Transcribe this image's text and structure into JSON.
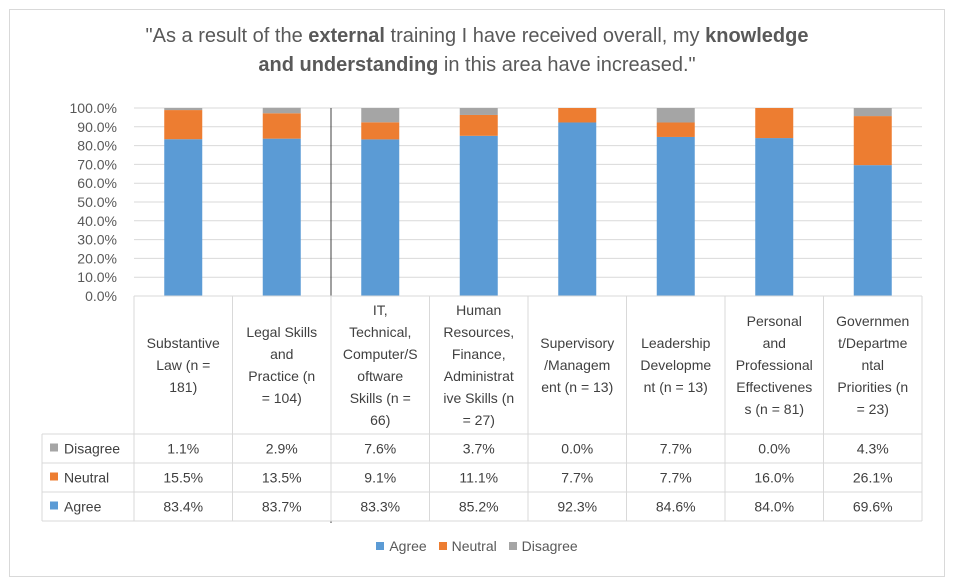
{
  "chart_data": {
    "type": "bar",
    "stacked": true,
    "title_parts": [
      {
        "text": "\"As a result of the ",
        "bold": false
      },
      {
        "text": "external",
        "bold": true
      },
      {
        "text": " training I have received overall, my ",
        "bold": false
      },
      {
        "text": "knowledge",
        "bold": true
      },
      {
        "text": " and understanding",
        "bold": true
      },
      {
        "text": " in this area have increased.\"",
        "bold": false
      }
    ],
    "ylim": [
      0,
      100
    ],
    "yticks": [
      "100.0%",
      "90.0%",
      "80.0%",
      "70.0%",
      "60.0%",
      "50.0%",
      "40.0%",
      "30.0%",
      "20.0%",
      "10.0%",
      "0.0%"
    ],
    "categories": [
      [
        "Substantive",
        "Law (n =",
        "181)"
      ],
      [
        "Legal Skills",
        "and",
        "Practice (n",
        "= 104)"
      ],
      [
        "IT,",
        "Technical,",
        "Computer/S",
        "oftware",
        "Skills (n =",
        "66)"
      ],
      [
        "Human",
        "Resources,",
        "Finance,",
        "Administrat",
        "ive Skills (n",
        "= 27)"
      ],
      [
        "Supervisory",
        "/Managem",
        "ent (n = 13)"
      ],
      [
        "Leadership",
        "Developme",
        "nt (n = 13)"
      ],
      [
        "Personal",
        "and",
        "Professional",
        "Effectivenes",
        "s (n = 81)"
      ],
      [
        "Governmen",
        "t/Departme",
        "ntal",
        "Priorities (n",
        "= 23)"
      ]
    ],
    "series": [
      {
        "name": "Agree",
        "color": "#5b9bd5",
        "values": [
          83.4,
          83.7,
          83.3,
          85.2,
          92.3,
          84.6,
          84.0,
          69.6
        ],
        "labels": [
          "83.4%",
          "83.7%",
          "83.3%",
          "85.2%",
          "92.3%",
          "84.6%",
          "84.0%",
          "69.6%"
        ]
      },
      {
        "name": "Neutral",
        "color": "#ed7d31",
        "values": [
          15.5,
          13.5,
          9.1,
          11.1,
          7.7,
          7.7,
          16.0,
          26.1
        ],
        "labels": [
          "15.5%",
          "13.5%",
          "9.1%",
          "11.1%",
          "7.7%",
          "7.7%",
          "16.0%",
          "26.1%"
        ]
      },
      {
        "name": "Disagree",
        "color": "#a5a5a5",
        "values": [
          1.1,
          2.9,
          7.6,
          3.7,
          0.0,
          7.7,
          0.0,
          4.3
        ],
        "labels": [
          "1.1%",
          "2.9%",
          "7.6%",
          "3.7%",
          "0.0%",
          "7.7%",
          "0.0%",
          "4.3%"
        ]
      }
    ],
    "table_row_order": [
      "Disagree",
      "Neutral",
      "Agree"
    ],
    "legend_order": [
      "Agree",
      "Neutral",
      "Disagree"
    ],
    "grid": true,
    "legend_position": "bottom"
  }
}
